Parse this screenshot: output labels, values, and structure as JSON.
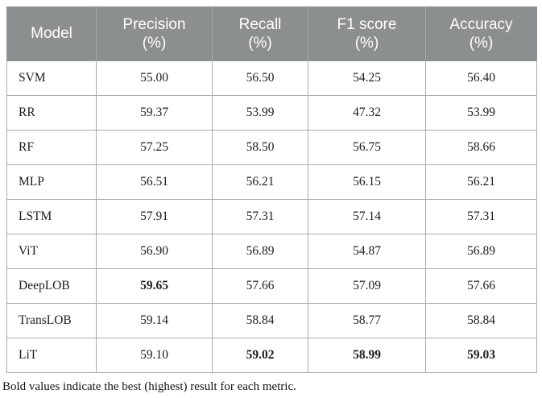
{
  "colors": {
    "header_bg": "#8b8f90",
    "header_text": "#ffffff",
    "cell_border": "#a9abac",
    "body_text": "#1d1d1d"
  },
  "table": {
    "columns": [
      {
        "id": "model",
        "label": "Model"
      },
      {
        "id": "precision",
        "label": "Precision\n(%)"
      },
      {
        "id": "recall",
        "label": "Recall\n(%)"
      },
      {
        "id": "f1",
        "label": "F1 score\n(%)"
      },
      {
        "id": "accuracy",
        "label": "Accuracy\n(%)"
      }
    ],
    "rows": [
      {
        "model": "SVM",
        "cells": [
          {
            "v": "55.00",
            "bold": false
          },
          {
            "v": "56.50",
            "bold": false
          },
          {
            "v": "54.25",
            "bold": false
          },
          {
            "v": "56.40",
            "bold": false
          }
        ]
      },
      {
        "model": "RR",
        "cells": [
          {
            "v": "59.37",
            "bold": false
          },
          {
            "v": "53.99",
            "bold": false
          },
          {
            "v": "47.32",
            "bold": false
          },
          {
            "v": "53.99",
            "bold": false
          }
        ]
      },
      {
        "model": "RF",
        "cells": [
          {
            "v": "57.25",
            "bold": false
          },
          {
            "v": "58.50",
            "bold": false
          },
          {
            "v": "56.75",
            "bold": false
          },
          {
            "v": "58.66",
            "bold": false
          }
        ]
      },
      {
        "model": "MLP",
        "cells": [
          {
            "v": "56.51",
            "bold": false
          },
          {
            "v": "56.21",
            "bold": false
          },
          {
            "v": "56.15",
            "bold": false
          },
          {
            "v": "56.21",
            "bold": false
          }
        ]
      },
      {
        "model": "LSTM",
        "cells": [
          {
            "v": "57.91",
            "bold": false
          },
          {
            "v": "57.31",
            "bold": false
          },
          {
            "v": "57.14",
            "bold": false
          },
          {
            "v": "57.31",
            "bold": false
          }
        ]
      },
      {
        "model": "ViT",
        "cells": [
          {
            "v": "56.90",
            "bold": false
          },
          {
            "v": "56.89",
            "bold": false
          },
          {
            "v": "54.87",
            "bold": false
          },
          {
            "v": "56.89",
            "bold": false
          }
        ]
      },
      {
        "model": "DeepLOB",
        "cells": [
          {
            "v": "59.65",
            "bold": true
          },
          {
            "v": "57.66",
            "bold": false
          },
          {
            "v": "57.09",
            "bold": false
          },
          {
            "v": "57.66",
            "bold": false
          }
        ]
      },
      {
        "model": "TransLOB",
        "cells": [
          {
            "v": "59.14",
            "bold": false
          },
          {
            "v": "58.84",
            "bold": false
          },
          {
            "v": "58.77",
            "bold": false
          },
          {
            "v": "58.84",
            "bold": false
          }
        ]
      },
      {
        "model": "LiT",
        "cells": [
          {
            "v": "59.10",
            "bold": false
          },
          {
            "v": "59.02",
            "bold": true
          },
          {
            "v": "58.99",
            "bold": true
          },
          {
            "v": "59.03",
            "bold": true
          }
        ]
      }
    ]
  },
  "footnote": "Bold values indicate the best (highest) result for each metric."
}
